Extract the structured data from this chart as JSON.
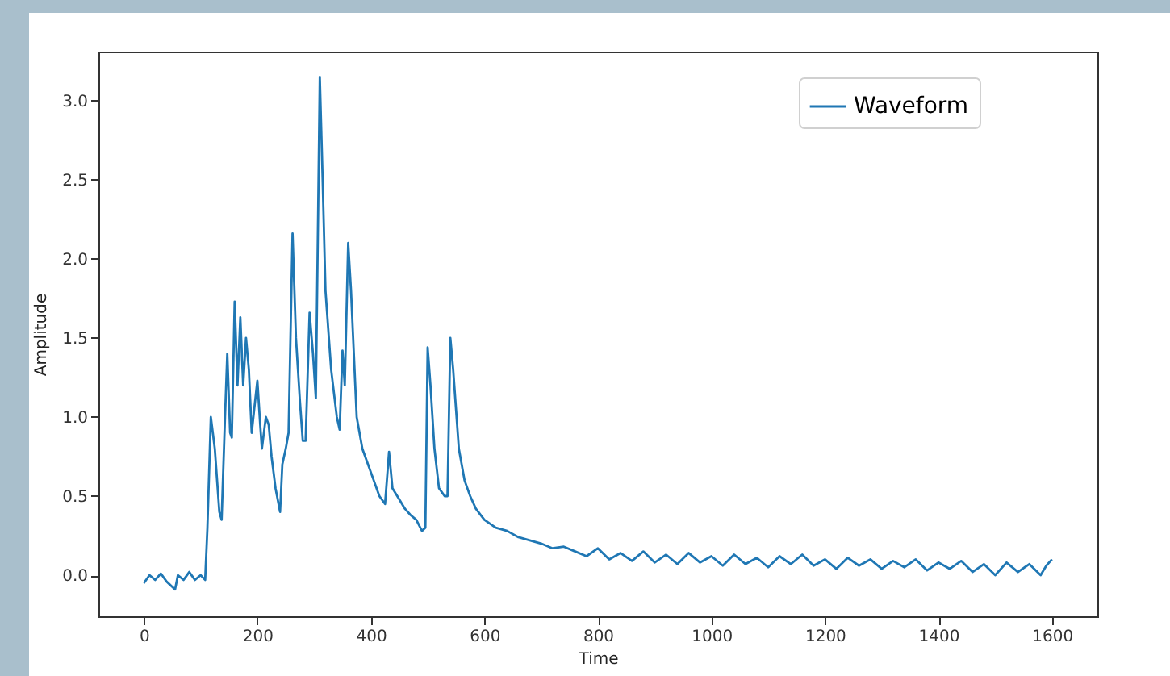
{
  "chart_data": {
    "type": "line",
    "xlabel": "Time",
    "ylabel": "Amplitude",
    "x": [
      0,
      10,
      20,
      30,
      40,
      55,
      60,
      70,
      80,
      90,
      100,
      108,
      112,
      118,
      125,
      133,
      137,
      143,
      147,
      152,
      155,
      160,
      165,
      170,
      175,
      180,
      185,
      190,
      196,
      200,
      205,
      208,
      215,
      220,
      225,
      232,
      240,
      244,
      250,
      255,
      262,
      268,
      275,
      280,
      285,
      292,
      298,
      303,
      310,
      315,
      320,
      330,
      340,
      345,
      350,
      354,
      360,
      365,
      375,
      385,
      395,
      405,
      415,
      425,
      432,
      438,
      450,
      460,
      470,
      480,
      490,
      496,
      500,
      505,
      512,
      520,
      530,
      535,
      540,
      545,
      555,
      565,
      575,
      585,
      600,
      620,
      640,
      660,
      680,
      700,
      720,
      740,
      760,
      780,
      800,
      820,
      840,
      860,
      880,
      900,
      920,
      940,
      960,
      980,
      1000,
      1020,
      1040,
      1060,
      1080,
      1100,
      1120,
      1140,
      1160,
      1180,
      1200,
      1220,
      1240,
      1260,
      1280,
      1300,
      1320,
      1340,
      1360,
      1380,
      1400,
      1420,
      1440,
      1460,
      1480,
      1500,
      1520,
      1540,
      1560,
      1580,
      1590,
      1600
    ],
    "series": [
      {
        "name": "Waveform",
        "color": "#1f77b4",
        "values": [
          -0.05,
          0.0,
          -0.03,
          0.01,
          -0.04,
          -0.09,
          0.0,
          -0.03,
          0.02,
          -0.03,
          0.0,
          -0.03,
          0.3,
          1.0,
          0.8,
          0.4,
          0.35,
          1.0,
          1.4,
          0.9,
          0.87,
          1.73,
          1.2,
          1.63,
          1.2,
          1.5,
          1.3,
          0.9,
          1.1,
          1.23,
          0.95,
          0.8,
          1.0,
          0.95,
          0.75,
          0.55,
          0.4,
          0.7,
          0.8,
          0.9,
          2.16,
          1.5,
          1.1,
          0.85,
          0.85,
          1.66,
          1.4,
          1.12,
          3.15,
          2.5,
          1.8,
          1.3,
          1.0,
          0.92,
          1.42,
          1.2,
          2.1,
          1.8,
          1.0,
          0.8,
          0.7,
          0.6,
          0.5,
          0.45,
          0.78,
          0.55,
          0.48,
          0.42,
          0.38,
          0.35,
          0.28,
          0.3,
          1.44,
          1.2,
          0.8,
          0.55,
          0.5,
          0.5,
          1.5,
          1.3,
          0.8,
          0.6,
          0.5,
          0.42,
          0.35,
          0.3,
          0.28,
          0.24,
          0.22,
          0.2,
          0.17,
          0.18,
          0.15,
          0.12,
          0.17,
          0.1,
          0.14,
          0.09,
          0.15,
          0.08,
          0.13,
          0.07,
          0.14,
          0.08,
          0.12,
          0.06,
          0.13,
          0.07,
          0.11,
          0.05,
          0.12,
          0.07,
          0.13,
          0.06,
          0.1,
          0.04,
          0.11,
          0.06,
          0.1,
          0.04,
          0.09,
          0.05,
          0.1,
          0.03,
          0.08,
          0.04,
          0.09,
          0.02,
          0.07,
          0.0,
          0.08,
          0.02,
          0.07,
          0.0,
          0.06,
          0.1
        ]
      }
    ],
    "xlim": [
      -80,
      1680
    ],
    "xticks": [
      0,
      200,
      400,
      600,
      800,
      1000,
      1200,
      1400,
      1600
    ],
    "ylim": [
      -0.26,
      3.31
    ],
    "yticks": [
      {
        "value": 0,
        "label": "0.0"
      },
      {
        "value": 0.5,
        "label": "0.5"
      },
      {
        "value": 1,
        "label": "1.0"
      },
      {
        "value": 1.5,
        "label": "1.5"
      },
      {
        "value": 2,
        "label": "2.0"
      },
      {
        "value": 2.5,
        "label": "2.5"
      },
      {
        "value": 3,
        "label": "3.0"
      }
    ],
    "legend": "top right",
    "line_style": "solid"
  }
}
